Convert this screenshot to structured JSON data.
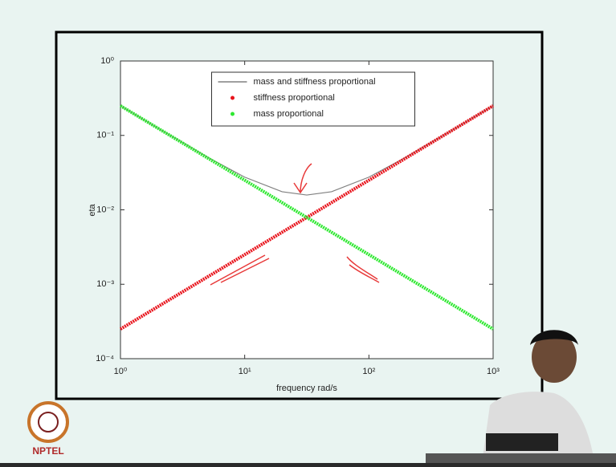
{
  "chart_data": {
    "type": "loglog",
    "xlabel": "frequency rad/s",
    "ylabel": "eta",
    "x": [
      1,
      2,
      5,
      10,
      20,
      31.6,
      50,
      100,
      200,
      500,
      1000
    ],
    "series": [
      {
        "name": "mass and stiffness proportional",
        "color": "#808080",
        "style": "line",
        "values": [
          0.25025,
          0.1255,
          0.05125,
          0.0275,
          0.0175,
          0.0158,
          0.0175,
          0.0275,
          0.05125,
          0.1255,
          0.25025
        ]
      },
      {
        "name": "stiffness proportional",
        "color": "#e8141c",
        "style": "dot",
        "values": [
          0.00025,
          0.0005,
          0.00125,
          0.0025,
          0.005,
          0.0079,
          0.0125,
          0.025,
          0.05,
          0.125,
          0.25
        ]
      },
      {
        "name": "mass proportional",
        "color": "#2ee830",
        "style": "dot",
        "values": [
          0.25,
          0.125,
          0.05,
          0.025,
          0.0125,
          0.0079,
          0.005,
          0.0025,
          0.00125,
          0.0005,
          0.00025
        ]
      }
    ],
    "xscale": "log",
    "yscale": "log",
    "xlim": [
      1,
      1000
    ],
    "ylim": [
      0.0001,
      1
    ],
    "xticks": [
      {
        "value": 1,
        "label": "10⁰"
      },
      {
        "value": 10,
        "label": "10¹"
      },
      {
        "value": 100,
        "label": "10²"
      },
      {
        "value": 1000,
        "label": "10³"
      }
    ],
    "yticks": [
      {
        "value": 0.0001,
        "label": "10⁻⁴"
      },
      {
        "value": 0.001,
        "label": "10⁻³"
      },
      {
        "value": 0.01,
        "label": "10⁻²"
      },
      {
        "value": 0.1,
        "label": "10⁻¹"
      },
      {
        "value": 1,
        "label": "10⁰"
      }
    ],
    "legend": "top"
  },
  "logo_text": "NPTEL"
}
